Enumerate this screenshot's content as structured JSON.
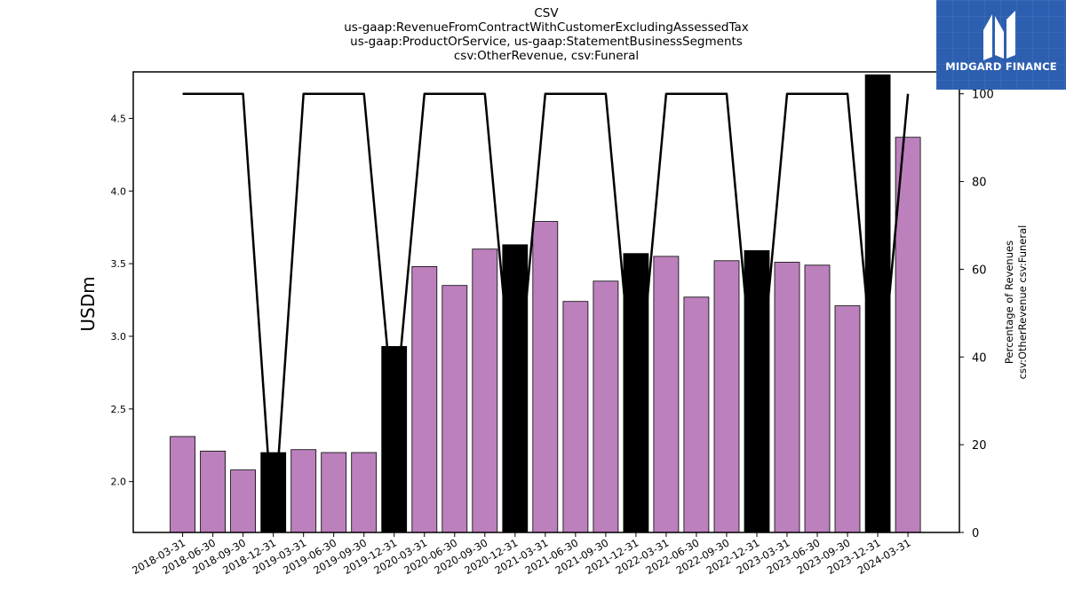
{
  "header": {
    "title_lines": [
      "CSV",
      "us-gaap:RevenueFromContractWithCustomerExcludingAssessedTax",
      "us-gaap:ProductOrService, us-gaap:StatementBusinessSegments",
      "csv:OtherRevenue, csv:Funeral"
    ]
  },
  "logo": {
    "text": "MIDGARD FINANCE",
    "color": "#2d5fb0"
  },
  "chart_data": {
    "type": "bar",
    "title": "CSV\nus-gaap:RevenueFromContractWithCustomerExcludingAssessedTax\nus-gaap:ProductOrService, us-gaap:StatementBusinessSegments\ncsv:OtherRevenue, csv:Funeral",
    "ylabel": "USDm",
    "y2label": "Percentage of Revenues\ncsv:OtherRevenue csv:Funeral",
    "ylim": [
      1.65,
      4.82
    ],
    "y2lim": [
      0,
      105
    ],
    "yticks": [
      "2.0",
      "2.5",
      "3.0",
      "3.5",
      "4.0",
      "4.5"
    ],
    "y2ticks": [
      "0",
      "20",
      "40",
      "60",
      "80",
      "100"
    ],
    "categories": [
      "2018-03-31",
      "2018-06-30",
      "2018-09-30",
      "2018-12-31",
      "2019-03-31",
      "2019-06-30",
      "2019-09-30",
      "2019-12-31",
      "2020-03-31",
      "2020-06-30",
      "2020-09-30",
      "2020-12-31",
      "2021-03-31",
      "2021-06-30",
      "2021-09-30",
      "2021-12-31",
      "2022-03-31",
      "2022-06-30",
      "2022-09-30",
      "2022-12-31",
      "2023-03-31",
      "2023-06-30",
      "2023-09-30",
      "2023-12-31",
      "2024-03-31"
    ],
    "values": [
      2.31,
      2.21,
      2.08,
      2.2,
      2.22,
      2.2,
      2.2,
      2.93,
      3.48,
      3.35,
      3.6,
      3.63,
      3.79,
      3.24,
      3.38,
      3.57,
      3.55,
      3.27,
      3.52,
      3.59,
      3.51,
      3.49,
      3.21,
      4.8,
      4.37
    ],
    "bar_colors": [
      "#bc80bd",
      "#bc80bd",
      "#bc80bd",
      "#000000",
      "#bc80bd",
      "#bc80bd",
      "#bc80bd",
      "#000000",
      "#bc80bd",
      "#bc80bd",
      "#bc80bd",
      "#000000",
      "#bc80bd",
      "#bc80bd",
      "#bc80bd",
      "#000000",
      "#bc80bd",
      "#bc80bd",
      "#bc80bd",
      "#000000",
      "#bc80bd",
      "#bc80bd",
      "#bc80bd",
      "#000000",
      "#bc80bd"
    ],
    "line_values": [
      100,
      100,
      100,
      0,
      100,
      100,
      100,
      25,
      100,
      100,
      100,
      25,
      100,
      100,
      100,
      25,
      100,
      100,
      100,
      25,
      100,
      100,
      100,
      25,
      100
    ],
    "line_color": "#000000",
    "grid": false
  }
}
